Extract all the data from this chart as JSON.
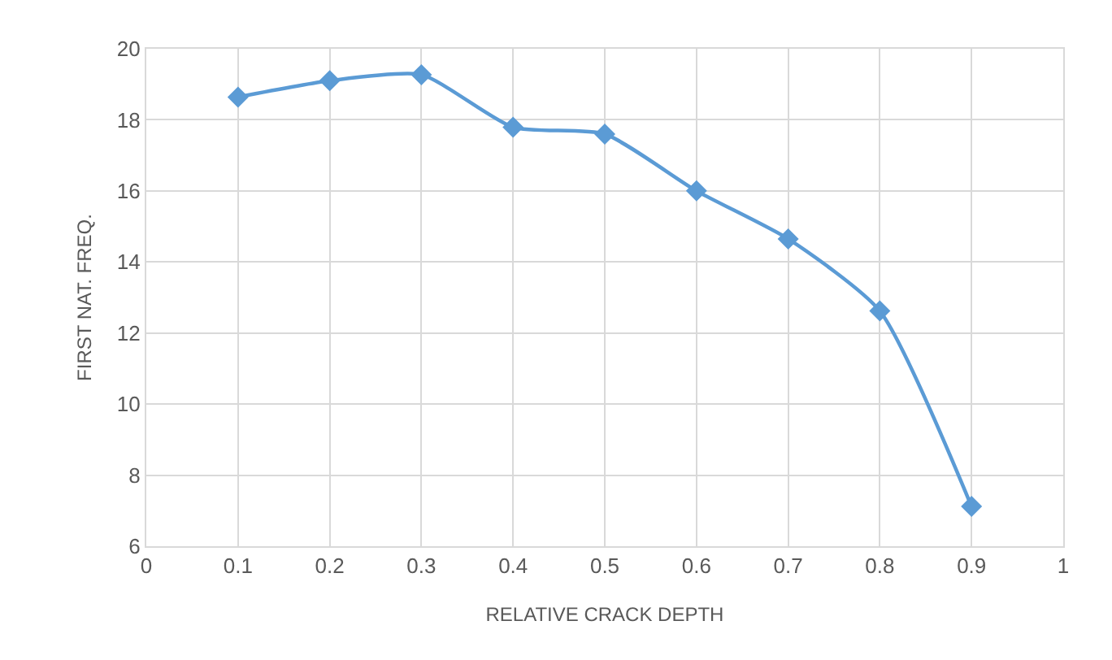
{
  "chart_data": {
    "type": "line",
    "xlabel": "RELATIVE CRACK DEPTH",
    "ylabel": "FIRST NAT. FREQ.",
    "x": [
      0.1,
      0.2,
      0.3,
      0.4,
      0.5,
      0.6,
      0.7,
      0.8,
      0.9
    ],
    "series": [
      {
        "color": "#5b9bd5",
        "values": [
          18.64,
          19.1,
          19.27,
          17.79,
          17.6,
          16.0,
          14.65,
          12.62,
          7.12
        ]
      }
    ],
    "xlim": [
      0,
      1
    ],
    "xticks": [
      0,
      0.1,
      0.2,
      0.3,
      0.4,
      0.5,
      0.6,
      0.7,
      0.8,
      0.9,
      1
    ],
    "ylim": [
      6,
      20
    ],
    "yticks": [
      6,
      8,
      10,
      12,
      14,
      16,
      18,
      20
    ],
    "grid": true,
    "marker": "diamond",
    "line_style": "solid"
  }
}
